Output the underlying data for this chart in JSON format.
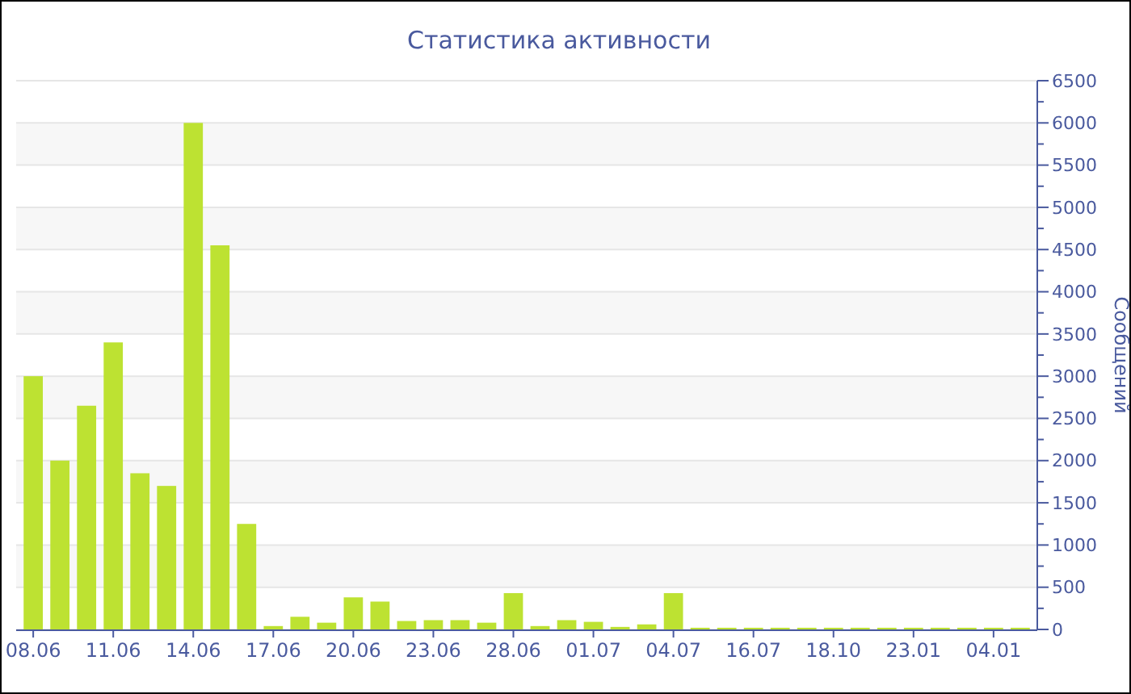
{
  "chart_data": {
    "type": "bar",
    "title": "Статистика активности",
    "ylabel": "Сообщений",
    "color": "#bde232",
    "categories": [
      "08.06",
      null,
      null,
      "11.06",
      null,
      null,
      "14.06",
      null,
      null,
      "17.06",
      null,
      null,
      "20.06",
      null,
      null,
      "23.06",
      null,
      null,
      "28.06",
      null,
      null,
      "01.07",
      null,
      null,
      "04.07",
      null,
      null,
      "16.07",
      null,
      null,
      "18.10",
      null,
      null,
      "23.01",
      null,
      null,
      "04.01",
      null
    ],
    "values": [
      3000,
      2000,
      2650,
      3400,
      1850,
      1700,
      6000,
      4550,
      1250,
      40,
      150,
      80,
      380,
      330,
      100,
      110,
      110,
      80,
      430,
      40,
      110,
      90,
      30,
      60,
      430,
      20,
      20,
      20,
      20,
      20,
      20,
      20,
      20,
      20,
      20,
      20,
      20,
      20
    ],
    "ylim": [
      0,
      6500
    ],
    "yticks": [
      0,
      {
        "value": 250,
        "label": null
      },
      500,
      {
        "value": 750,
        "label": null
      },
      1000,
      {
        "value": 1250,
        "label": null
      },
      1500,
      {
        "value": 1750,
        "label": null
      },
      2000,
      {
        "value": 2250,
        "label": null
      },
      2500,
      {
        "value": 2750,
        "label": null
      },
      3000,
      {
        "value": 3250,
        "label": null
      },
      3500,
      {
        "value": 3750,
        "label": null
      },
      4000,
      {
        "value": 4250,
        "label": null
      },
      4500,
      {
        "value": 4750,
        "label": null
      },
      5000,
      {
        "value": 5250,
        "label": null
      },
      5500,
      {
        "value": 5750,
        "label": null
      },
      6000,
      {
        "value": 6250,
        "label": null
      },
      6500
    ],
    "grid": "y"
  }
}
